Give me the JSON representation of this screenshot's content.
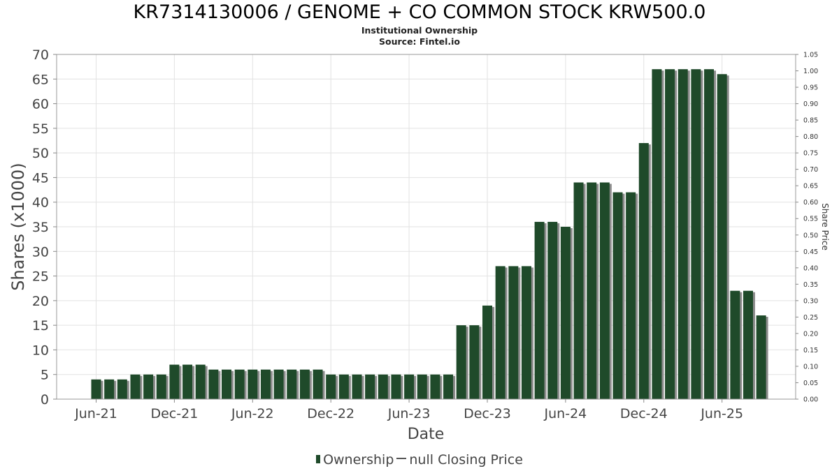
{
  "title": "KR7314130006 / GENOME + CO COMMON STOCK KRW500.0",
  "subtitle": "Institutional Ownership",
  "source": "Source: Fintel.io",
  "legend": {
    "ownership_label": "Ownership",
    "price_label": "null Closing Price"
  },
  "colors": {
    "bar": "#1f4a2a",
    "bar_shadow": "#8c8c8c",
    "grid": "#e2e2e2"
  },
  "chart_data": {
    "type": "bar",
    "xlabel": "Date",
    "ylabel": "Shares (x1000)",
    "y2label": "Share Price",
    "ylim": [
      0,
      70
    ],
    "y_ticks": [
      0,
      5,
      10,
      15,
      20,
      25,
      30,
      35,
      40,
      45,
      50,
      55,
      60,
      65,
      70
    ],
    "y2lim": [
      0,
      1.05
    ],
    "y2_ticks": [
      "0.00",
      "0.05",
      "0.10",
      "0.15",
      "0.20",
      "0.25",
      "0.30",
      "0.35",
      "0.40",
      "0.45",
      "0.50",
      "0.55",
      "0.60",
      "0.65",
      "0.70",
      "0.75",
      "0.80",
      "0.85",
      "0.90",
      "0.95",
      "1.00",
      "1.05"
    ],
    "x_tick_labels": [
      "Jun-21",
      "Dec-21",
      "Jun-22",
      "Dec-22",
      "Jun-23",
      "Dec-23",
      "Jun-24",
      "Dec-24",
      "Jun-25"
    ],
    "grid": true,
    "legend_position": "bottom",
    "series": [
      {
        "name": "Ownership",
        "values": [
          4,
          4,
          4,
          5,
          5,
          5,
          7,
          7,
          7,
          6,
          6,
          6,
          6,
          6,
          6,
          6,
          6,
          6,
          5,
          5,
          5,
          5,
          5,
          5,
          5,
          5,
          5,
          5,
          15,
          15,
          19,
          27,
          27,
          27,
          36,
          36,
          35,
          44,
          44,
          44,
          42,
          42,
          52,
          67,
          67,
          67,
          67,
          67,
          66,
          22,
          22,
          17
        ]
      }
    ]
  }
}
